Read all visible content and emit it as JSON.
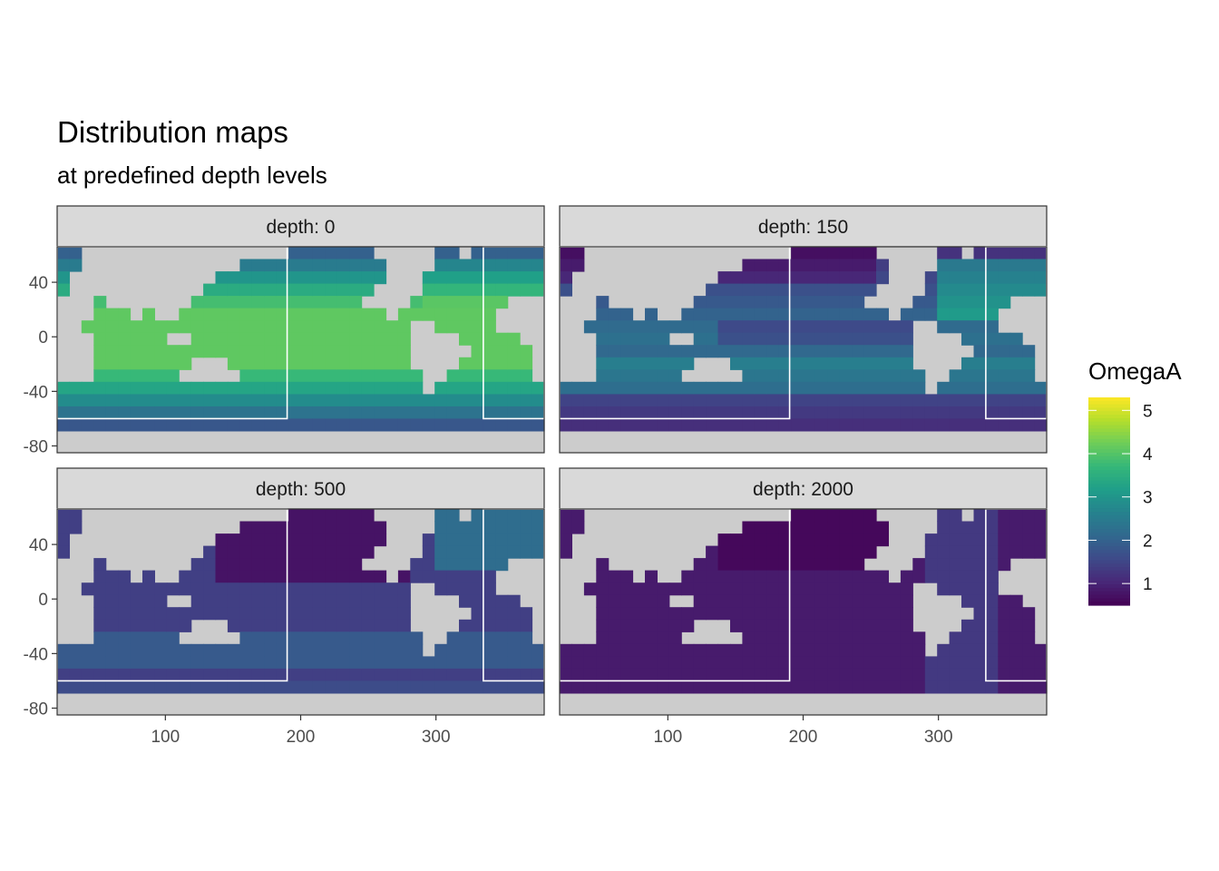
{
  "chart_data": {
    "type": "heatmap",
    "title": "Distribution maps",
    "subtitle": "at predefined depth levels",
    "xlabel": "",
    "ylabel": "",
    "facet_label_prefix": "depth: ",
    "xlim": [
      20,
      380
    ],
    "ylim": [
      -85,
      66
    ],
    "x_ticks": [
      100,
      200,
      300
    ],
    "y_ticks": [
      40,
      0,
      -40,
      -80
    ],
    "panels": [
      {
        "depth": "0",
        "label": "depth: 0"
      },
      {
        "depth": "150",
        "label": "depth: 150"
      },
      {
        "depth": "500",
        "label": "depth: 500"
      },
      {
        "depth": "2000",
        "label": "depth: 2000"
      }
    ],
    "legend": {
      "title": "OmegaA",
      "breaks": [
        1,
        2,
        3,
        4,
        5
      ],
      "limits": [
        0.5,
        5.3
      ],
      "palette": "viridis"
    },
    "boxes": [
      {
        "x0": 20,
        "x1": 190,
        "y0": -60,
        "y1": 66
      },
      {
        "x0": 335,
        "x1": 380,
        "y0": -60,
        "y1": 66
      }
    ]
  }
}
